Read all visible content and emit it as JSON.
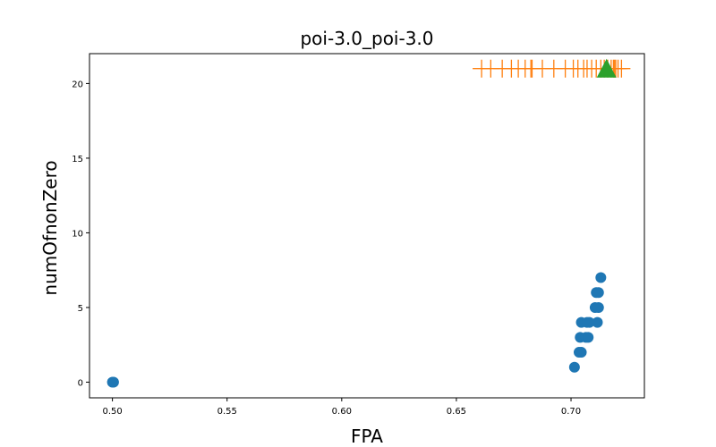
{
  "chart_data": {
    "type": "scatter",
    "title": "poi-3.0_poi-3.0",
    "xlabel": "FPA",
    "ylabel": "numOfnonZero",
    "xlim": [
      0.49,
      0.732
    ],
    "ylim": [
      -1.05,
      22.0
    ],
    "x_ticks": [
      0.5,
      0.55,
      0.6,
      0.65,
      0.7
    ],
    "x_tick_labels": [
      "0.50",
      "0.55",
      "0.60",
      "0.65",
      "0.70"
    ],
    "y_ticks": [
      0,
      5,
      10,
      15,
      20
    ],
    "y_tick_labels": [
      "0",
      "5",
      "10",
      "15",
      "20"
    ],
    "grid": false,
    "series": [
      {
        "marker": "circle",
        "color": "#1f77b4",
        "points": [
          {
            "x": 0.5,
            "y": 0
          },
          {
            "x": 0.5005,
            "y": 0
          },
          {
            "x": 0.7015,
            "y": 1
          },
          {
            "x": 0.7035,
            "y": 2
          },
          {
            "x": 0.7045,
            "y": 2
          },
          {
            "x": 0.704,
            "y": 3
          },
          {
            "x": 0.7065,
            "y": 3
          },
          {
            "x": 0.7075,
            "y": 3
          },
          {
            "x": 0.7045,
            "y": 4
          },
          {
            "x": 0.707,
            "y": 4
          },
          {
            "x": 0.708,
            "y": 4
          },
          {
            "x": 0.7115,
            "y": 4
          },
          {
            "x": 0.7105,
            "y": 5
          },
          {
            "x": 0.712,
            "y": 5
          },
          {
            "x": 0.711,
            "y": 6
          },
          {
            "x": 0.712,
            "y": 6
          },
          {
            "x": 0.713,
            "y": 7
          }
        ]
      },
      {
        "marker": "plus",
        "color": "#ff7f0e",
        "points": [
          {
            "x": 0.661,
            "y": 21
          },
          {
            "x": 0.665,
            "y": 21
          },
          {
            "x": 0.67,
            "y": 21
          },
          {
            "x": 0.674,
            "y": 21
          },
          {
            "x": 0.677,
            "y": 21
          },
          {
            "x": 0.68,
            "y": 21
          },
          {
            "x": 0.6825,
            "y": 21
          },
          {
            "x": 0.683,
            "y": 21
          },
          {
            "x": 0.6875,
            "y": 21
          },
          {
            "x": 0.6925,
            "y": 21
          },
          {
            "x": 0.6975,
            "y": 21
          },
          {
            "x": 0.701,
            "y": 21
          },
          {
            "x": 0.703,
            "y": 21
          },
          {
            "x": 0.7055,
            "y": 21
          },
          {
            "x": 0.707,
            "y": 21
          },
          {
            "x": 0.709,
            "y": 21
          },
          {
            "x": 0.711,
            "y": 21
          },
          {
            "x": 0.713,
            "y": 21
          },
          {
            "x": 0.7145,
            "y": 21
          },
          {
            "x": 0.716,
            "y": 21
          },
          {
            "x": 0.7175,
            "y": 21
          },
          {
            "x": 0.7185,
            "y": 21
          },
          {
            "x": 0.719,
            "y": 21
          },
          {
            "x": 0.7195,
            "y": 21
          },
          {
            "x": 0.7205,
            "y": 21
          },
          {
            "x": 0.722,
            "y": 21
          }
        ]
      },
      {
        "marker": "triangle",
        "color": "#2ca02c",
        "points": [
          {
            "x": 0.7155,
            "y": 21
          }
        ]
      }
    ]
  }
}
